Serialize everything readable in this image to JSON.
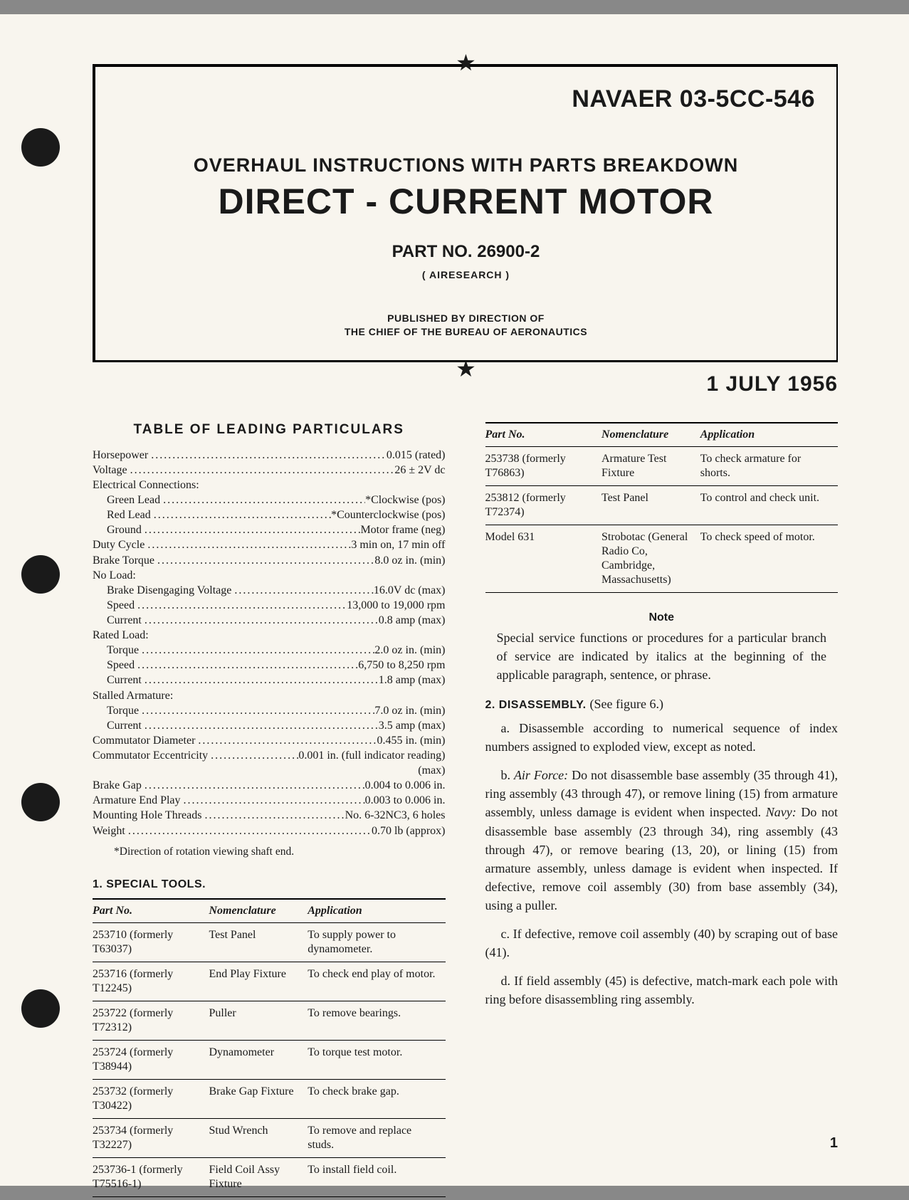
{
  "header": {
    "doc_id": "NAVAER 03-5CC-546",
    "subtitle": "OVERHAUL INSTRUCTIONS WITH PARTS BREAKDOWN",
    "title": "DIRECT - CURRENT MOTOR",
    "part_no": "PART NO. 26900-2",
    "mfr": "( AIRESEARCH )",
    "pub1": "PUBLISHED BY DIRECTION OF",
    "pub2": "THE CHIEF OF THE BUREAU OF AERONAUTICS",
    "date": "1 JULY 1956"
  },
  "particulars": {
    "heading": "TABLE OF LEADING PARTICULARS",
    "rows": [
      {
        "label": "Horsepower",
        "value": "0.015 (rated)",
        "indent": 0
      },
      {
        "label": "Voltage",
        "value": "26 ± 2V dc",
        "indent": 0
      },
      {
        "label": "Electrical Connections:",
        "value": "",
        "indent": 0,
        "header": true
      },
      {
        "label": "Green Lead",
        "value": "*Clockwise (pos)",
        "indent": 1
      },
      {
        "label": "Red Lead",
        "value": "*Counterclockwise (pos)",
        "indent": 1
      },
      {
        "label": "Ground",
        "value": "Motor frame (neg)",
        "indent": 1
      },
      {
        "label": "Duty Cycle",
        "value": "3 min on, 17 min off",
        "indent": 0
      },
      {
        "label": "Brake Torque",
        "value": "8.0 oz in. (min)",
        "indent": 0
      },
      {
        "label": "No Load:",
        "value": "",
        "indent": 0,
        "header": true
      },
      {
        "label": "Brake Disengaging Voltage",
        "value": "16.0V dc (max)",
        "indent": 1
      },
      {
        "label": "Speed",
        "value": "13,000 to 19,000 rpm",
        "indent": 1
      },
      {
        "label": "Current",
        "value": "0.8 amp (max)",
        "indent": 1
      },
      {
        "label": "Rated Load:",
        "value": "",
        "indent": 0,
        "header": true
      },
      {
        "label": "Torque",
        "value": "2.0 oz in. (min)",
        "indent": 1
      },
      {
        "label": "Speed",
        "value": "6,750 to 8,250 rpm",
        "indent": 1
      },
      {
        "label": "Current",
        "value": "1.8 amp (max)",
        "indent": 1
      },
      {
        "label": "Stalled Armature:",
        "value": "",
        "indent": 0,
        "header": true
      },
      {
        "label": "Torque",
        "value": "7.0 oz in. (min)",
        "indent": 1
      },
      {
        "label": "Current",
        "value": "3.5 amp (max)",
        "indent": 1
      },
      {
        "label": "Commutator Diameter",
        "value": "0.455 in. (min)",
        "indent": 0
      },
      {
        "label": "Commutator Eccentricity",
        "value": "0.001 in. (full indicator reading)",
        "indent": 0
      },
      {
        "label": "",
        "value": "(max)",
        "indent": 0,
        "rightonly": true
      },
      {
        "label": "Brake Gap",
        "value": "0.004 to 0.006 in.",
        "indent": 0
      },
      {
        "label": "Armature End Play",
        "value": "0.003 to 0.006 in.",
        "indent": 0
      },
      {
        "label": "Mounting Hole Threads",
        "value": "No. 6-32NC3, 6 holes",
        "indent": 0
      },
      {
        "label": "Weight",
        "value": "0.70 lb (approx)",
        "indent": 0
      }
    ],
    "footnote": "*Direction of rotation viewing shaft end."
  },
  "tools": {
    "heading": "1. SPECIAL TOOLS.",
    "columns": [
      "Part No.",
      "Nomenclature",
      "Application"
    ],
    "rows_left": [
      [
        "253710 (formerly T63037)",
        "Test Panel",
        "To supply power to dynamometer."
      ],
      [
        "253716 (formerly T12245)",
        "End Play Fixture",
        "To check end play of motor."
      ],
      [
        "253722 (formerly T72312)",
        "Puller",
        "To remove bearings."
      ],
      [
        "253724 (formerly T38944)",
        "Dynamometer",
        "To torque test motor."
      ],
      [
        "253732 (formerly T30422)",
        "Brake Gap Fixture",
        "To check brake gap."
      ],
      [
        "253734 (formerly T32227)",
        "Stud Wrench",
        "To remove and replace studs."
      ],
      [
        "253736-1 (formerly T75516-1)",
        "Field Coil Assy Fixture",
        "To install field coil."
      ]
    ],
    "rows_right": [
      [
        "253738 (formerly T76863)",
        "Armature Test Fixture",
        "To check armature for shorts."
      ],
      [
        "253812 (formerly T72374)",
        "Test Panel",
        "To control and check unit."
      ],
      [
        "Model 631",
        "Strobotac (General Radio Co, Cambridge, Massachusetts)",
        "To check speed of motor."
      ]
    ]
  },
  "note": {
    "heading": "Note",
    "text": "Special service functions or procedures for a particular branch of service are indicated by italics at the beginning of the applicable paragraph, sentence, or phrase."
  },
  "disassembly": {
    "heading": "2. DISASSEMBLY.",
    "seefig": "(See figure 6.)",
    "paras": {
      "a": "a. Disassemble according to numerical sequence of index numbers assigned to exploded view, except as noted.",
      "b_pre": "b. ",
      "b_af": "Air Force:",
      "b_af_text": " Do not disassemble base assembly (35 through 41), ring assembly (43 through 47), or remove lining (15) from armature assembly, unless damage is evident when inspected. ",
      "b_navy": "Navy:",
      "b_navy_text": " Do not disassemble base assembly (23 through 34), ring assembly (43 through 47), or remove bearing (13, 20), or lining (15) from armature assembly, unless damage is evident when inspected. If defective, remove coil assembly (30) from base assembly (34), using a puller.",
      "c": "c. If defective, remove coil assembly (40) by scraping out of base (41).",
      "d": "d. If field assembly (45) is defective, match-mark each pole with ring before disassembling ring assembly."
    }
  },
  "pagenum": "1"
}
